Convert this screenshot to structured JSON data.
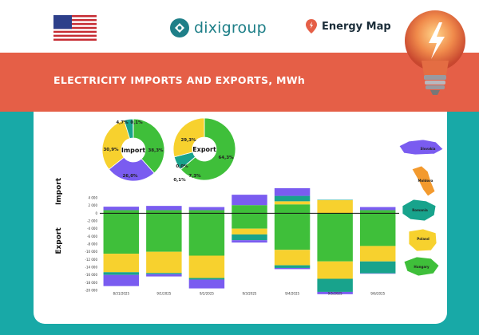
{
  "header": {
    "logo_text": "dixigroup",
    "energy_map_label": "Energy Map"
  },
  "banner": {
    "title": "ELECTRICITY IMPORTS AND EXPORTS, MWh"
  },
  "colors": {
    "banner": "#e55f47",
    "teal": "#18a9a7",
    "Slovakia": "#7a5cf0",
    "Moldova": "#f39a2e",
    "Romania": "#18a38c",
    "Poland": "#f7d12e",
    "Hungary": "#3fbf3a"
  },
  "chart_data": [
    {
      "type": "pie",
      "title": "Import",
      "labels": [
        "Hungary",
        "Slovakia",
        "Poland",
        "Romania",
        "Moldova"
      ],
      "values": [
        38.3,
        26.0,
        30.9,
        4.7,
        0.1
      ],
      "value_labels": [
        "38,3%",
        "26,0%",
        "30,9%",
        "4,7%",
        "0,1%"
      ]
    },
    {
      "type": "pie",
      "title": "Export",
      "labels": [
        "Hungary",
        "Slovakia",
        "Romania",
        "Moldova",
        "Poland"
      ],
      "values": [
        64.3,
        0.1,
        7.3,
        0.0,
        29.3
      ],
      "value_labels": [
        "64,3%",
        "0,1%",
        "7,3%",
        "0,0%",
        "29,3%"
      ]
    },
    {
      "type": "bar",
      "stacked": true,
      "ylabel_top": "Import",
      "ylabel_bottom": "Export",
      "ylim": [
        -20000,
        4000
      ],
      "yticks": [
        4000,
        2000,
        0,
        -2000,
        -4000,
        -6000,
        -8000,
        -10000,
        -12000,
        -14000,
        -16000,
        -18000,
        -20000
      ],
      "ytick_labels": [
        "4 000",
        "2 000",
        "0",
        "-2 000",
        "-4 000",
        "-6 000",
        "-8 000",
        "-10 000",
        "-12 000",
        "-14 000",
        "-16 000",
        "-18 000",
        "-20 000"
      ],
      "categories": [
        "8/31/2025",
        "9/1/2025",
        "9/2/2025",
        "9/3/2025",
        "9/4/2025",
        "9/5/2025",
        "9/6/2025"
      ],
      "series": [
        {
          "name": "Hungary",
          "import": [
            800,
            800,
            800,
            2100,
            2300,
            0,
            800
          ],
          "export": [
            -10500,
            -10000,
            -11000,
            -4000,
            -9500,
            -12500,
            -8500
          ]
        },
        {
          "name": "Poland",
          "import": [
            0,
            0,
            0,
            0,
            800,
            3400,
            0
          ],
          "export": [
            -4800,
            -5500,
            -5800,
            -1500,
            -4000,
            -4500,
            -4000
          ]
        },
        {
          "name": "Romania",
          "import": [
            0,
            0,
            0,
            0,
            1400,
            100,
            0
          ],
          "export": [
            -700,
            -300,
            -400,
            -1500,
            -700,
            -3400,
            -3100
          ]
        },
        {
          "name": "Slovakia",
          "import": [
            900,
            1100,
            800,
            2700,
            2000,
            0,
            800
          ],
          "export": [
            -2900,
            -600,
            -2300,
            -600,
            -300,
            -600,
            -100
          ]
        }
      ],
      "line_value": 0
    }
  ],
  "map_labels": [
    "Slovakia",
    "Moldova",
    "Romania",
    "Poland",
    "Hungary"
  ]
}
